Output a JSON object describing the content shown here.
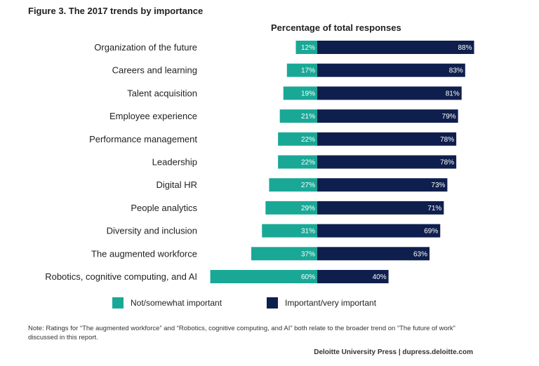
{
  "figure_title": "Figure 3. The 2017 trends by importance",
  "colors": {
    "not_important": "#1aa896",
    "important": "#0f1f4d"
  },
  "chart_data": {
    "type": "bar",
    "subtype": "diverging-stacked-horizontal",
    "title": "Percentage of total responses",
    "categories": [
      "Organization of the future",
      "Careers and learning",
      "Talent acquisition",
      "Employee experience",
      "Performance management",
      "Leadership",
      "Digital HR",
      "People analytics",
      "Diversity and inclusion",
      "The augmented workforce",
      "Robotics, cognitive computing, and AI"
    ],
    "series": [
      {
        "name": "Not/somewhat important",
        "values": [
          12,
          17,
          19,
          21,
          22,
          22,
          27,
          29,
          31,
          37,
          60
        ],
        "labels": [
          "12%",
          "17%",
          "19%",
          "21%",
          "22%",
          "22%",
          "27%",
          "29%",
          "31%",
          "37%",
          "60%"
        ]
      },
      {
        "name": "Important/very important",
        "values": [
          88,
          83,
          81,
          79,
          78,
          78,
          73,
          71,
          69,
          63,
          40
        ],
        "labels": [
          "88%",
          "83%",
          "81%",
          "79%",
          "78%",
          "78%",
          "73%",
          "71%",
          "69%",
          "63%",
          "40%"
        ]
      }
    ],
    "legend_position": "bottom",
    "grid": false
  },
  "note": "Note: Ratings for “The augmented workforce” and “Robotics, cognitive computing, and AI” both relate to the broader trend on “The future of work” discussed in this report.",
  "source": "Deloitte University Press  |  dupress.deloitte.com"
}
